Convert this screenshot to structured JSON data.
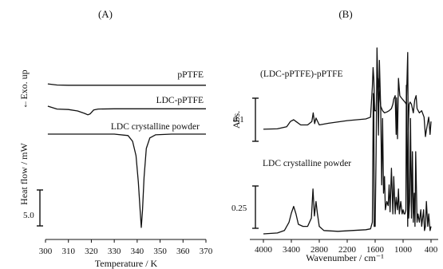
{
  "chart_data": [
    {
      "panel": "(A)",
      "type": "line",
      "xlabel": "Temperature / K",
      "ylabel": "Heat flow / mW",
      "ylabel_arrow": "←Exo. up",
      "xlim": [
        300,
        370
      ],
      "xticks": [
        "300",
        "310",
        "320",
        "330",
        "340",
        "350",
        "360",
        "370"
      ],
      "scale_bar": "5.0",
      "series": [
        {
          "name": "pPTFE",
          "x": [
            301,
            305,
            310,
            320,
            330,
            340,
            350,
            360,
            370
          ],
          "y": [
            -0.02,
            -0.25,
            -0.3,
            -0.3,
            -0.3,
            -0.3,
            -0.3,
            -0.3,
            -0.3
          ]
        },
        {
          "name": "LDC-pPTFE",
          "x": [
            301,
            305,
            310,
            314,
            317,
            318.5,
            319.5,
            321,
            323,
            330,
            340,
            350,
            360,
            370
          ],
          "y": [
            0.5,
            -0.1,
            -0.2,
            -0.5,
            -1.0,
            -1.3,
            -1.1,
            -0.3,
            -0.1,
            -0.05,
            -0.05,
            -0.05,
            -0.05,
            -0.05
          ]
        },
        {
          "name": "LDC crystalline powder",
          "x": [
            301,
            310,
            320,
            330,
            336,
            338,
            339.5,
            340.5,
            341.3,
            341.8,
            342.3,
            343,
            344,
            345.5,
            348,
            355,
            370
          ],
          "y": [
            0,
            0,
            0,
            0,
            -0.3,
            -1.5,
            -4.5,
            -10,
            -16,
            -19.5,
            -16,
            -9,
            -3,
            -0.8,
            -0.15,
            0,
            0
          ]
        }
      ]
    },
    {
      "panel": "(B)",
      "type": "line",
      "xlabel": "Wavenumber / cm⁻¹",
      "ylabel": "Abs.",
      "xlim": [
        4000,
        400
      ],
      "xticks": [
        "4000",
        "3400",
        "2800",
        "2200",
        "1600",
        "1000",
        "400"
      ],
      "scale_bars": [
        "0.1",
        "0.25"
      ],
      "series": [
        {
          "name": "(LDC-pPTFE)-pPTFE",
          "x": [
            4000,
            3700,
            3500,
            3420,
            3350,
            3300,
            3200,
            3050,
            2960,
            2930,
            2900,
            2870,
            2800,
            2600,
            2200,
            1800,
            1700,
            1660,
            1645,
            1630,
            1610,
            1580,
            1560,
            1540,
            1520,
            1480,
            1460,
            1440,
            1400,
            1350,
            1300,
            1250,
            1220,
            1200,
            1170,
            1150,
            1140,
            1120,
            1100,
            1070,
            1040,
            1000,
            960,
            930,
            900,
            890,
            870,
            850,
            820,
            780,
            750,
            720,
            700,
            650,
            600,
            550,
            520,
            500,
            450,
            420,
            400
          ],
          "y": [
            0.002,
            0.003,
            0.008,
            0.02,
            0.024,
            0.02,
            0.012,
            0.012,
            0.02,
            0.04,
            0.015,
            0.028,
            0.012,
            0.016,
            0.022,
            0.026,
            0.03,
            0.1,
            0.145,
            0.12,
            0.045,
            0.045,
            0.1,
            0.12,
            0.1,
            0.055,
            0.05,
            0.045,
            0.04,
            0.042,
            0.045,
            0.05,
            0.06,
            0.072,
            0.08,
            -0.01,
            0.075,
            -0.02,
            0.12,
            0.08,
            0.075,
            0.07,
            0.065,
            0.06,
            0.18,
            0.0,
            0.06,
            0.065,
            0.06,
            0.04,
            0.07,
            0.08,
            0.05,
            0.04,
            0.045,
            0.03,
            -0.015,
            0.0,
            0.03,
            -0.01,
            0.02
          ]
        },
        {
          "name": "LDC crystalline powder",
          "x": [
            4000,
            3700,
            3550,
            3450,
            3400,
            3350,
            3300,
            3250,
            3150,
            3050,
            2970,
            2935,
            2905,
            2870,
            2840,
            2800,
            2700,
            2400,
            2100,
            1800,
            1700,
            1660,
            1640,
            1630,
            1620,
            1600,
            1580,
            1560,
            1545,
            1530,
            1510,
            1480,
            1460,
            1440,
            1420,
            1400,
            1380,
            1350,
            1320,
            1300,
            1280,
            1250,
            1220,
            1200,
            1170,
            1150,
            1120,
            1100,
            1080,
            1050,
            1020,
            1000,
            980,
            960,
            940,
            930,
            900,
            890,
            880,
            860,
            840,
            820,
            800,
            780,
            760,
            745,
            730,
            700,
            680,
            650,
            620,
            600,
            560,
            540,
            520,
            500,
            470,
            450,
            420,
            400
          ],
          "y": [
            0.002,
            0.004,
            0.01,
            0.03,
            0.052,
            0.068,
            0.05,
            0.025,
            0.02,
            0.02,
            0.04,
            0.11,
            0.045,
            0.08,
            0.05,
            0.02,
            0.01,
            0.008,
            0.01,
            0.012,
            0.014,
            0.03,
            0.34,
            0.33,
            0.02,
            0.02,
            0.2,
            0.45,
            0.38,
            0.24,
            0.42,
            0.3,
            0.12,
            0.28,
            0.1,
            0.14,
            0.06,
            0.08,
            0.07,
            0.12,
            0.055,
            0.16,
            0.05,
            0.14,
            0.05,
            0.09,
            0.06,
            0.11,
            0.05,
            0.08,
            0.05,
            0.06,
            0.05,
            0.05,
            0.06,
            0.36,
            0.02,
            0.3,
            0.04,
            0.08,
            0.28,
            0.04,
            0.2,
            0.03,
            0.1,
            0.02,
            0.2,
            0.03,
            0.05,
            0.03,
            0.06,
            0.02,
            0.06,
            0.01,
            0.02,
            0.08,
            0.02,
            0.05,
            0.01,
            0.02
          ]
        }
      ]
    }
  ]
}
